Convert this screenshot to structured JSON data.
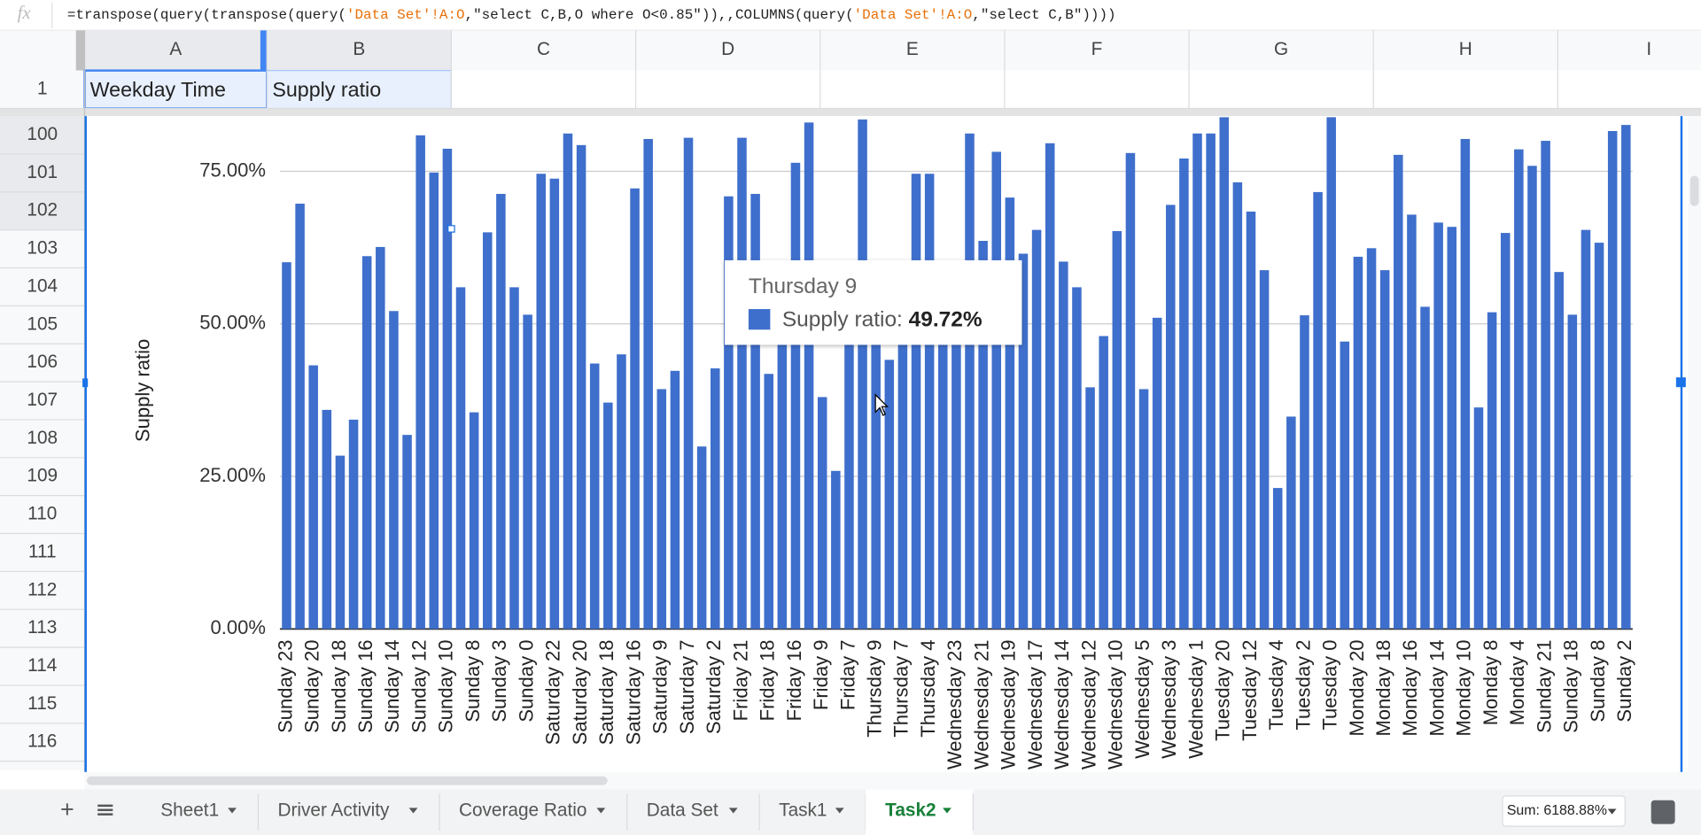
{
  "formula_bar": {
    "formula": [
      "=transpose(query(transpose(query(",
      "'Data Set'!A:O",
      ",\"select C,B,O where O<0.85\")),,COLUMNS(query(",
      "'Data Set'!A:O",
      ",\"select C,B\"))))"
    ]
  },
  "columns": [
    "A",
    "B",
    "C",
    "D",
    "E",
    "F",
    "G",
    "H",
    "I"
  ],
  "rows": [
    1,
    100,
    101,
    102,
    103,
    104,
    105,
    106,
    107,
    108,
    109,
    110,
    111,
    112,
    113,
    114,
    115,
    116
  ],
  "header_cells": [
    "Weekday Time",
    "Supply ratio"
  ],
  "chart_data": {
    "type": "bar",
    "y_label": "Supply ratio",
    "color": "#3f6fcc",
    "grid": true,
    "ylim": [
      0,
      84
    ],
    "yticks": [
      {
        "value": 0,
        "label": "0.00%"
      },
      {
        "value": 25,
        "label": "25.00%"
      },
      {
        "value": 50,
        "label": "50.00%"
      },
      {
        "value": 75,
        "label": "75.00%"
      }
    ],
    "categories": [
      "Sunday 23",
      null,
      "Sunday 20",
      null,
      "Sunday 18",
      null,
      "Sunday 16",
      null,
      "Sunday 14",
      null,
      "Sunday 12",
      null,
      "Sunday 10",
      null,
      "Sunday 8",
      null,
      "Sunday 3",
      null,
      "Sunday 0",
      null,
      "Saturday 22",
      null,
      "Saturday 20",
      null,
      "Saturday 18",
      null,
      "Saturday 16",
      null,
      "Saturday 9",
      null,
      "Saturday 7",
      null,
      "Saturday 2",
      null,
      "Friday 21",
      null,
      "Friday 18",
      null,
      "Friday 16",
      null,
      "Friday 9",
      null,
      "Friday 7",
      null,
      "Thursday 9",
      null,
      "Thursday 7",
      null,
      "Thursday 4",
      null,
      "Wednesday 23",
      null,
      "Wednesday 21",
      null,
      "Wednesday 19",
      null,
      "Wednesday 17",
      null,
      "Wednesday 14",
      null,
      "Wednesday 12",
      null,
      "Wednesday 10",
      null,
      "Wednesday 5",
      null,
      "Wednesday 3",
      null,
      "Wednesday 1",
      null,
      "Tuesday 20",
      null,
      "Tuesday 12",
      null,
      "Tuesday 4",
      null,
      "Tuesday 2",
      null,
      "Tuesday 0",
      null,
      "Monday 20",
      null,
      "Monday 18",
      null,
      "Monday 16",
      null,
      "Monday 14",
      null,
      "Monday 10",
      null,
      "Monday 8",
      null,
      "Monday 4",
      null,
      "Sunday 21",
      null,
      "Sunday 18",
      null,
      "Sunday 8",
      null,
      "Sunday 2"
    ],
    "values": [
      60.1,
      69.7,
      43.2,
      35.9,
      28.4,
      34.3,
      61.1,
      62.6,
      52.1,
      31.8,
      80.9,
      74.8,
      78.7,
      56.0,
      35.5,
      65.0,
      71.3,
      56.0,
      51.5,
      74.6,
      73.8,
      81.2,
      79.3,
      43.5,
      37.1,
      45.0,
      72.2,
      80.3,
      39.3,
      42.3,
      80.5,
      29.9,
      42.7,
      70.9,
      80.5,
      71.3,
      41.8,
      47,
      76.4,
      83.0,
      38.0,
      25.9,
      55,
      83.5,
      49.72,
      44.1,
      50,
      74.6,
      74.6,
      52,
      55,
      81.2,
      63.6,
      78.2,
      70.7,
      61.5,
      65.4,
      79.6,
      60.2,
      56.0,
      39.6,
      48.0,
      65.2,
      78.0,
      39.3,
      51.0,
      69.5,
      77.1,
      81.2,
      81.2,
      84.2,
      73.2,
      68.4,
      58.8,
      23.1,
      34.8,
      51.4,
      71.6,
      84.2,
      47.1,
      61.0,
      62.4,
      58.8,
      77.7,
      67.9,
      52.8,
      66.6,
      65.9,
      80.3,
      36.3,
      51.9,
      64.9,
      78.6,
      75.9,
      80.0,
      58.5,
      51.5,
      65.4,
      63.3,
      81.6,
      82.6
    ],
    "tooltip": {
      "index": 44,
      "label": "Supply ratio:",
      "value_label": "49.72%"
    }
  },
  "sheet_tabs": [
    {
      "name": "Sheet1",
      "active": false
    },
    {
      "name": "Driver Activity",
      "active": false
    },
    {
      "name": "Coverage Ratio",
      "active": false
    },
    {
      "name": "Data Set",
      "active": false
    },
    {
      "name": "Task1",
      "active": false
    },
    {
      "name": "Task2",
      "active": true
    }
  ],
  "status": {
    "sum": "Sum: 6188.88%"
  }
}
